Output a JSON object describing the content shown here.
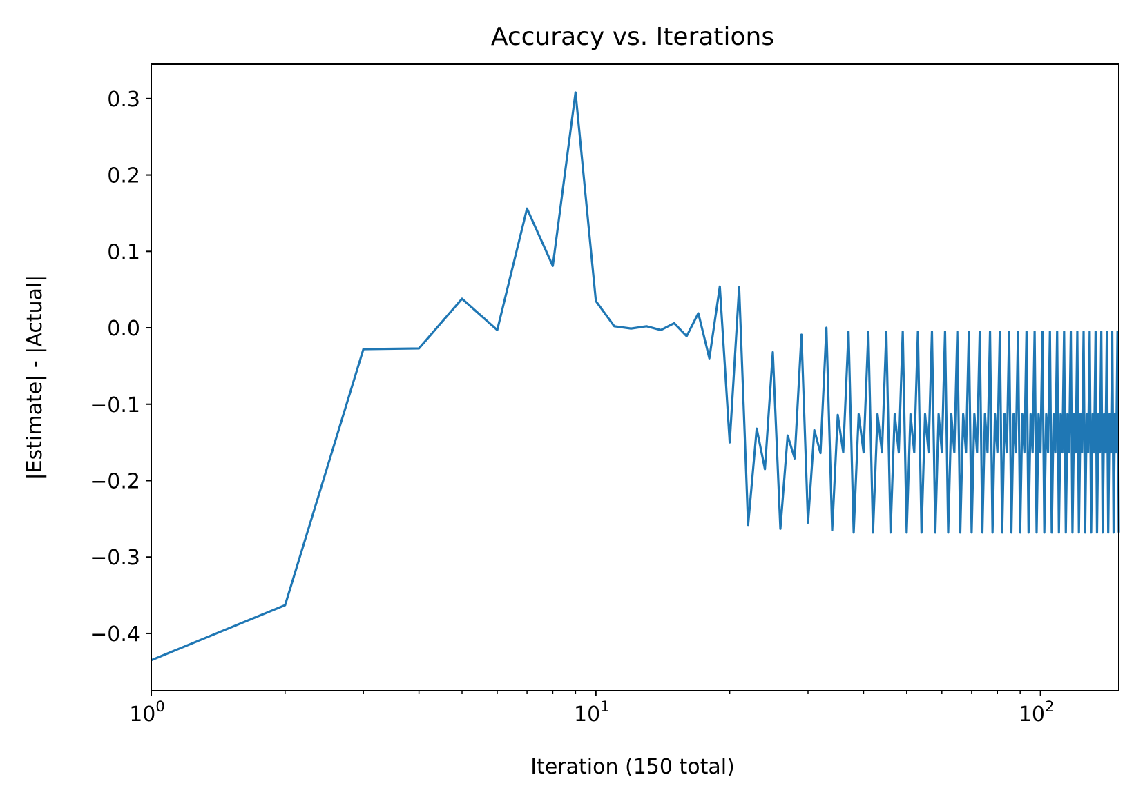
{
  "chart_data": {
    "type": "line",
    "title": "Accuracy vs. Iterations",
    "xlabel": "Iteration (150 total)",
    "ylabel": "|Estimate| - |Actual|",
    "x_scale": "log",
    "xlim": [
      1,
      150
    ],
    "ylim": [
      -0.475,
      0.345
    ],
    "x_ticks": [
      {
        "value": 1,
        "base": "10",
        "exp": "0"
      },
      {
        "value": 10,
        "base": "10",
        "exp": "1"
      },
      {
        "value": 100,
        "base": "10",
        "exp": "2"
      }
    ],
    "y_ticks": [
      {
        "value": 0.3,
        "label": "0.3"
      },
      {
        "value": 0.2,
        "label": "0.2"
      },
      {
        "value": 0.1,
        "label": "0.1"
      },
      {
        "value": 0.0,
        "label": "0.0"
      },
      {
        "value": -0.1,
        "label": "−0.1"
      },
      {
        "value": -0.2,
        "label": "−0.2"
      },
      {
        "value": -0.3,
        "label": "−0.3"
      },
      {
        "value": -0.4,
        "label": "−0.4"
      }
    ],
    "grid": false,
    "color": "#1f77b4",
    "series": [
      {
        "x": [
          1,
          2,
          3,
          4,
          5,
          6,
          7,
          8,
          9,
          10,
          11,
          12,
          13,
          14,
          15,
          16,
          17,
          18,
          19,
          20,
          21,
          22,
          23,
          24,
          25,
          26,
          27,
          28,
          29,
          30,
          31,
          32,
          33,
          34,
          35,
          36
        ],
        "values": [
          -0.435,
          -0.363,
          -0.028,
          -0.027,
          0.038,
          -0.003,
          0.156,
          0.081,
          0.308,
          0.035,
          0.002,
          -0.001,
          0.002,
          -0.003,
          0.006,
          -0.011,
          0.019,
          -0.04,
          0.054,
          -0.15,
          0.053,
          -0.258,
          -0.132,
          -0.185,
          -0.032,
          -0.263,
          -0.141,
          -0.171,
          -0.009,
          -0.255,
          -0.134,
          -0.164,
          0.0,
          -0.265,
          -0.114,
          -0.163
        ]
      },
      {
        "pattern": "repeat",
        "start": 37,
        "end": 150,
        "cycle": [
          -0.005,
          -0.268,
          -0.113,
          -0.163
        ]
      }
    ]
  }
}
